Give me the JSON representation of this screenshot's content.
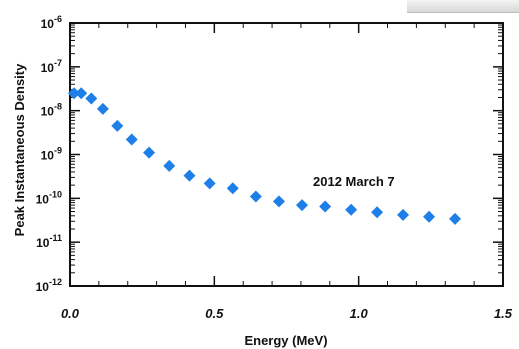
{
  "chart_data": {
    "type": "scatter",
    "xlabel": "Energy (MeV)",
    "ylabel": "Peak Instantaneous Density",
    "xlim": [
      0.0,
      1.5
    ],
    "ylim": [
      1e-12,
      1e-06
    ],
    "yscale": "log",
    "x_ticks": [
      "0.0",
      "0.5",
      "1.0",
      "1.5"
    ],
    "y_ticks": [
      {
        "base": "10",
        "exp": "-6",
        "value": 1e-06
      },
      {
        "base": "10",
        "exp": "-7",
        "value": 1e-07
      },
      {
        "base": "10",
        "exp": "-8",
        "value": 1e-08
      },
      {
        "base": "10",
        "exp": "-9",
        "value": 1e-09
      },
      {
        "base": "10",
        "exp": "-10",
        "value": 1e-10
      },
      {
        "base": "10",
        "exp": "-11",
        "value": 1e-11
      },
      {
        "base": "10",
        "exp": "-12",
        "value": 1e-12
      }
    ],
    "annotation": "2012 March 7",
    "marker_color": "#1f7fe8",
    "grid": false,
    "series": [
      {
        "x": [
          0.0,
          0.025,
          0.06,
          0.1,
          0.15,
          0.2,
          0.26,
          0.33,
          0.4,
          0.47,
          0.55,
          0.63,
          0.71,
          0.79,
          0.87,
          0.96,
          1.05,
          1.14,
          1.23,
          1.32
        ],
        "y": [
          2.5e-08,
          2.5e-08,
          1.9e-08,
          1.1e-08,
          4.5e-09,
          2.2e-09,
          1.1e-09,
          5.5e-10,
          3.3e-10,
          2.2e-10,
          1.7e-10,
          1.1e-10,
          8.5e-11,
          7e-11,
          6.5e-11,
          5.5e-11,
          4.8e-11,
          4.2e-11,
          3.8e-11,
          3.4e-11
        ]
      }
    ]
  }
}
